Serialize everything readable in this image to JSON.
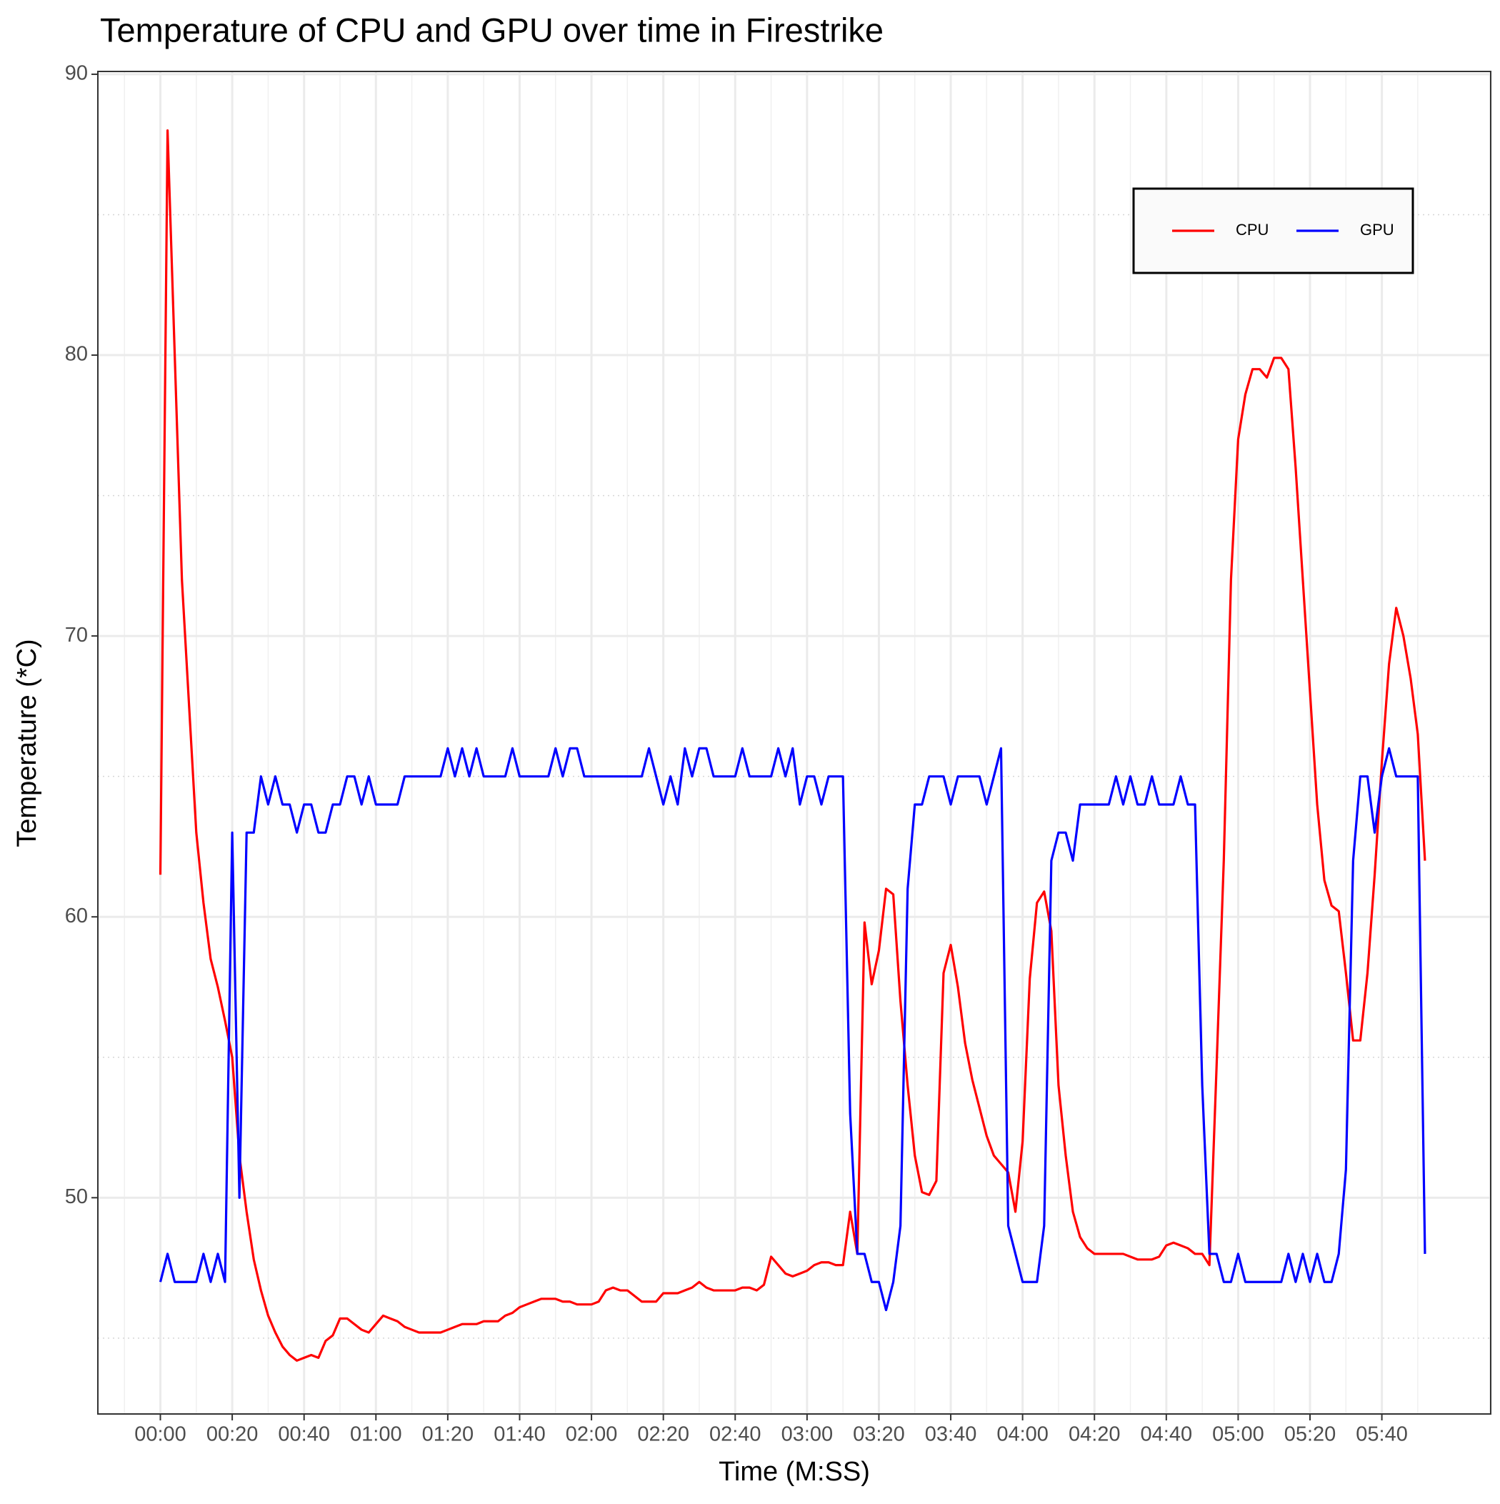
{
  "chart_data": {
    "type": "line",
    "title": "Temperature of CPU and GPU over time in Firestrike",
    "x_label": "Time (M:SS)",
    "y_label": "Temperature (*C)",
    "xlim": [
      -17.4,
      370.3
    ],
    "ylim": [
      42.3,
      90.1
    ],
    "xticks": [
      {
        "value": 0,
        "label": "00:00"
      },
      {
        "value": 20,
        "label": "00:20"
      },
      {
        "value": 40,
        "label": "00:40"
      },
      {
        "value": 60,
        "label": "01:00"
      },
      {
        "value": 80,
        "label": "01:20"
      },
      {
        "value": 100,
        "label": "01:40"
      },
      {
        "value": 120,
        "label": "02:00"
      },
      {
        "value": 140,
        "label": "02:20"
      },
      {
        "value": 160,
        "label": "02:40"
      },
      {
        "value": 180,
        "label": "03:00"
      },
      {
        "value": 200,
        "label": "03:20"
      },
      {
        "value": 220,
        "label": "03:40"
      },
      {
        "value": 240,
        "label": "04:00"
      },
      {
        "value": 260,
        "label": "04:20"
      },
      {
        "value": 280,
        "label": "04:40"
      },
      {
        "value": 300,
        "label": "05:00"
      },
      {
        "value": 320,
        "label": "05:20"
      },
      {
        "value": 340,
        "label": "05:40"
      }
    ],
    "yticks": [
      50,
      60,
      70,
      80,
      90
    ],
    "grid": true,
    "legend": "top-right",
    "x": [
      0,
      2,
      4,
      6,
      8,
      10,
      12,
      14,
      16,
      18,
      20,
      22,
      24,
      26,
      28,
      30,
      32,
      34,
      36,
      38,
      40,
      42,
      44,
      46,
      48,
      50,
      52,
      54,
      56,
      58,
      60,
      62,
      64,
      66,
      68,
      70,
      72,
      74,
      76,
      78,
      80,
      82,
      84,
      86,
      88,
      90,
      92,
      94,
      96,
      98,
      100,
      102,
      104,
      106,
      108,
      110,
      112,
      114,
      116,
      118,
      120,
      122,
      124,
      126,
      128,
      130,
      132,
      134,
      136,
      138,
      140,
      142,
      144,
      146,
      148,
      150,
      152,
      154,
      156,
      158,
      160,
      162,
      164,
      166,
      168,
      170,
      172,
      174,
      176,
      178,
      180,
      182,
      184,
      186,
      188,
      190,
      192,
      194,
      196,
      198,
      200,
      202,
      204,
      206,
      208,
      210,
      212,
      214,
      216,
      218,
      220,
      222,
      224,
      226,
      228,
      230,
      232,
      234,
      236,
      238,
      240,
      242,
      244,
      246,
      248,
      250,
      252,
      254,
      256,
      258,
      260,
      262,
      264,
      266,
      268,
      270,
      272,
      274,
      276,
      278,
      280,
      282,
      284,
      286,
      288,
      290,
      292,
      294,
      296,
      298,
      300,
      302,
      304,
      306,
      308,
      310,
      312,
      314,
      316,
      318,
      320,
      322,
      324,
      326,
      328,
      330,
      332,
      334,
      336,
      338,
      340,
      342,
      344,
      346,
      348,
      350,
      352
    ],
    "series": [
      {
        "name": "CPU",
        "color": "#ff0000",
        "values": [
          61.5,
          88,
          80,
          72,
          67.5,
          63,
          60.5,
          58.5,
          57.5,
          56.3,
          55,
          51.5,
          49.5,
          47.8,
          46.7,
          45.8,
          45.2,
          44.7,
          44.4,
          44.2,
          44.3,
          44.4,
          44.3,
          44.9,
          45.1,
          45.7,
          45.7,
          45.5,
          45.3,
          45.2,
          45.5,
          45.8,
          45.7,
          45.6,
          45.4,
          45.3,
          45.2,
          45.2,
          45.2,
          45.2,
          45.3,
          45.4,
          45.5,
          45.5,
          45.5,
          45.6,
          45.6,
          45.6,
          45.8,
          45.9,
          46.1,
          46.2,
          46.3,
          46.4,
          46.4,
          46.4,
          46.3,
          46.3,
          46.2,
          46.2,
          46.2,
          46.3,
          46.7,
          46.8,
          46.7,
          46.7,
          46.5,
          46.3,
          46.3,
          46.3,
          46.6,
          46.6,
          46.6,
          46.7,
          46.8,
          47.0,
          46.8,
          46.7,
          46.7,
          46.7,
          46.7,
          46.8,
          46.8,
          46.7,
          46.9,
          47.9,
          47.6,
          47.3,
          47.2,
          47.3,
          47.4,
          47.6,
          47.7,
          47.7,
          47.6,
          47.6,
          49.5,
          48,
          59.8,
          57.6,
          58.8,
          61,
          60.8,
          57,
          54,
          51.5,
          50.2,
          50.1,
          50.6,
          58,
          59,
          57.5,
          55.5,
          54.2,
          53.2,
          52.2,
          51.5,
          51.2,
          50.9,
          49.5,
          52,
          57.8,
          60.5,
          60.9,
          59.5,
          54,
          51.5,
          49.5,
          48.6,
          48.2,
          48,
          48,
          48,
          48,
          48,
          47.9,
          47.8,
          47.8,
          47.8,
          47.9,
          48.3,
          48.4,
          48.3,
          48.2,
          48,
          48,
          47.6,
          54.7,
          62,
          72,
          77,
          78.6,
          79.5,
          79.5,
          79.2,
          79.9,
          79.9,
          79.5,
          76,
          72,
          68,
          64,
          61.3,
          60.4,
          60.2,
          58,
          55.6,
          55.6,
          58,
          61.5,
          65.5,
          69,
          71,
          70,
          68.5,
          66.5,
          62
        ]
      },
      {
        "name": "GPU",
        "color": "#0000ff",
        "values": [
          47,
          48,
          47,
          47,
          47,
          47,
          48,
          47,
          48,
          47,
          63,
          50,
          63,
          63,
          65,
          64,
          65,
          64,
          64,
          63,
          64,
          64,
          63,
          63,
          64,
          64,
          65,
          65,
          64,
          65,
          64,
          64,
          64,
          64,
          65,
          65,
          65,
          65,
          65,
          65,
          66,
          65,
          66,
          65,
          66,
          65,
          65,
          65,
          65,
          66,
          65,
          65,
          65,
          65,
          65,
          66,
          65,
          66,
          66,
          65,
          65,
          65,
          65,
          65,
          65,
          65,
          65,
          65,
          66,
          65,
          64,
          65,
          64,
          66,
          65,
          66,
          66,
          65,
          65,
          65,
          65,
          66,
          65,
          65,
          65,
          65,
          66,
          65,
          66,
          64,
          65,
          65,
          64,
          65,
          65,
          65,
          53,
          48,
          48,
          47,
          47,
          46,
          47,
          49,
          61,
          64,
          64,
          65,
          65,
          65,
          64,
          65,
          65,
          65,
          65,
          64,
          65,
          66,
          49,
          48,
          47,
          47,
          47,
          49,
          62,
          63,
          63,
          62,
          64,
          64,
          64,
          64,
          64,
          65,
          64,
          65,
          64,
          64,
          65,
          64,
          64,
          64,
          65,
          64,
          64,
          54,
          48,
          48,
          47,
          47,
          48,
          47,
          47,
          47,
          47,
          47,
          47,
          48,
          47,
          48,
          47,
          48,
          47,
          47,
          48,
          51,
          62,
          65,
          65,
          63,
          65,
          66,
          65,
          65,
          65,
          65,
          48
        ]
      }
    ]
  }
}
